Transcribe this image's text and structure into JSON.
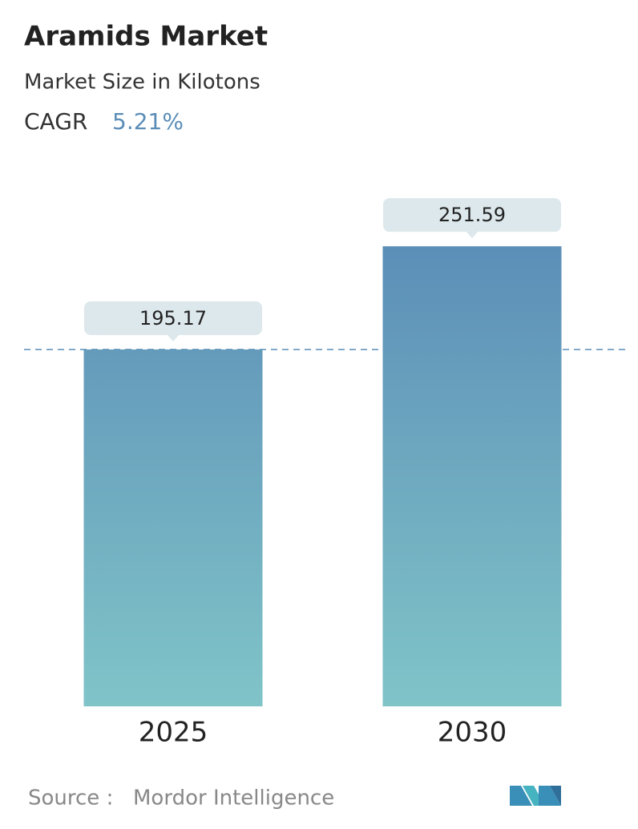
{
  "chart_data": {
    "type": "bar",
    "title": "Aramids Market",
    "subtitle": "Market Size in Kilotons",
    "cagr_label": "CAGR",
    "cagr": "5.21%",
    "categories": [
      "2025",
      "2030"
    ],
    "values": [
      195.17,
      251.59
    ],
    "color": "#5b8db7",
    "ylim": [
      0,
      260
    ],
    "reference_line": true,
    "source_label": "Source :",
    "source": "Mordor Intelligence"
  }
}
